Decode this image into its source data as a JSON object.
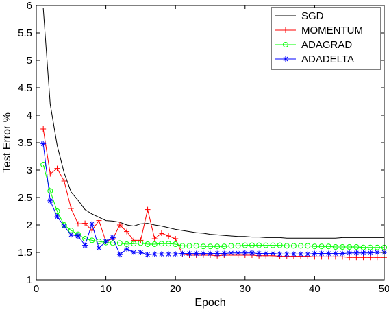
{
  "chart_data": {
    "type": "line",
    "xlabel": "Epoch",
    "ylabel": "Test Error %",
    "xlim": [
      0,
      50
    ],
    "ylim": [
      1,
      6
    ],
    "xticks": [
      "0",
      "10",
      "20",
      "30",
      "40",
      "50"
    ],
    "yticks": [
      "1",
      "1.5",
      "2",
      "2.5",
      "3",
      "3.5",
      "4",
      "4.5",
      "5",
      "5.5",
      "6"
    ],
    "grid": false,
    "legend_position": "top-right",
    "x": [
      1,
      2,
      3,
      4,
      5,
      6,
      7,
      8,
      9,
      10,
      11,
      12,
      13,
      14,
      15,
      16,
      17,
      18,
      19,
      20,
      21,
      22,
      23,
      24,
      25,
      26,
      27,
      28,
      29,
      30,
      31,
      32,
      33,
      34,
      35,
      36,
      37,
      38,
      39,
      40,
      41,
      42,
      43,
      44,
      45,
      46,
      47,
      48,
      49,
      50
    ],
    "series": [
      {
        "name": "SGD",
        "color": "#000000",
        "marker": "none",
        "values": [
          5.95,
          4.2,
          3.45,
          2.95,
          2.6,
          2.45,
          2.28,
          2.2,
          2.14,
          2.08,
          2.07,
          2.05,
          2.0,
          1.98,
          2.02,
          2.03,
          2.0,
          1.98,
          1.95,
          1.92,
          1.9,
          1.88,
          1.86,
          1.85,
          1.83,
          1.82,
          1.81,
          1.8,
          1.79,
          1.79,
          1.78,
          1.78,
          1.77,
          1.77,
          1.77,
          1.76,
          1.76,
          1.76,
          1.76,
          1.76,
          1.76,
          1.76,
          1.76,
          1.77,
          1.77,
          1.77,
          1.77,
          1.77,
          1.77,
          1.77
        ]
      },
      {
        "name": "MOMENTUM",
        "color": "#ff0000",
        "marker": "plus",
        "values": [
          3.75,
          2.93,
          3.03,
          2.8,
          2.3,
          2.02,
          2.03,
          1.9,
          2.08,
          1.7,
          1.75,
          2.0,
          1.88,
          1.72,
          1.72,
          2.28,
          1.75,
          1.85,
          1.8,
          1.75,
          1.47,
          1.45,
          1.45,
          1.45,
          1.45,
          1.44,
          1.45,
          1.45,
          1.45,
          1.45,
          1.45,
          1.44,
          1.44,
          1.44,
          1.43,
          1.43,
          1.43,
          1.43,
          1.43,
          1.42,
          1.42,
          1.42,
          1.42,
          1.42,
          1.41,
          1.41,
          1.41,
          1.41,
          1.41,
          1.41
        ]
      },
      {
        "name": "ADAGRAD",
        "color": "#00ff00",
        "marker": "circle",
        "values": [
          3.1,
          2.62,
          2.25,
          2.0,
          1.9,
          1.83,
          1.75,
          1.72,
          1.7,
          1.68,
          1.67,
          1.67,
          1.65,
          1.66,
          1.67,
          1.65,
          1.65,
          1.66,
          1.66,
          1.65,
          1.62,
          1.62,
          1.62,
          1.61,
          1.61,
          1.61,
          1.61,
          1.62,
          1.62,
          1.63,
          1.63,
          1.63,
          1.63,
          1.63,
          1.63,
          1.62,
          1.62,
          1.62,
          1.62,
          1.61,
          1.61,
          1.61,
          1.6,
          1.6,
          1.6,
          1.6,
          1.59,
          1.59,
          1.59,
          1.59
        ]
      },
      {
        "name": "ADADELTA",
        "color": "#0000ff",
        "marker": "star",
        "values": [
          3.48,
          2.44,
          2.15,
          1.98,
          1.82,
          1.8,
          1.63,
          2.02,
          1.58,
          1.7,
          1.77,
          1.46,
          1.56,
          1.5,
          1.5,
          1.46,
          1.47,
          1.47,
          1.47,
          1.47,
          1.48,
          1.48,
          1.48,
          1.48,
          1.48,
          1.48,
          1.48,
          1.49,
          1.49,
          1.49,
          1.49,
          1.48,
          1.48,
          1.48,
          1.47,
          1.47,
          1.47,
          1.47,
          1.47,
          1.48,
          1.48,
          1.48,
          1.48,
          1.48,
          1.49,
          1.49,
          1.49,
          1.49,
          1.5,
          1.5
        ]
      }
    ]
  }
}
